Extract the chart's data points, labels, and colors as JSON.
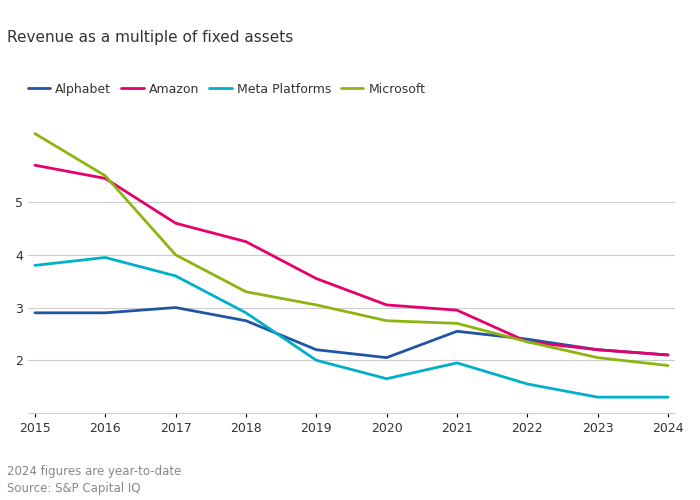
{
  "title": "Revenue as a multiple of fixed assets",
  "source_lines": [
    "2024 figures are year-to-date",
    "Source: S&P Capital IQ"
  ],
  "years": [
    2015,
    2016,
    2017,
    2018,
    2019,
    2020,
    2021,
    2022,
    2023,
    2024
  ],
  "series": {
    "Alphabet": {
      "color": "#2155a3",
      "values": [
        2.9,
        2.9,
        3.0,
        2.75,
        2.2,
        2.05,
        2.55,
        2.4,
        2.2,
        2.1
      ]
    },
    "Amazon": {
      "color": "#e6006e",
      "values": [
        5.7,
        5.45,
        4.6,
        4.25,
        3.55,
        3.05,
        2.95,
        2.35,
        2.2,
        2.1
      ]
    },
    "Meta Platforms": {
      "color": "#00b0c8",
      "values": [
        3.8,
        3.95,
        3.6,
        2.9,
        2.0,
        1.65,
        1.95,
        1.55,
        1.3,
        1.3
      ]
    },
    "Microsoft": {
      "color": "#8db510",
      "values": [
        6.3,
        5.5,
        4.0,
        3.3,
        3.05,
        2.75,
        2.7,
        2.35,
        2.05,
        1.9
      ]
    }
  },
  "ylim": [
    1.0,
    6.8
  ],
  "yticks": [
    2,
    3,
    4,
    5
  ],
  "xlim": [
    2015,
    2024
  ],
  "background_color": "#ffffff",
  "text_color": "#333333",
  "grid_color": "#cccccc",
  "linewidth": 2.0,
  "title_fontsize": 11,
  "legend_fontsize": 9,
  "tick_fontsize": 9,
  "source_fontsize": 8.5
}
